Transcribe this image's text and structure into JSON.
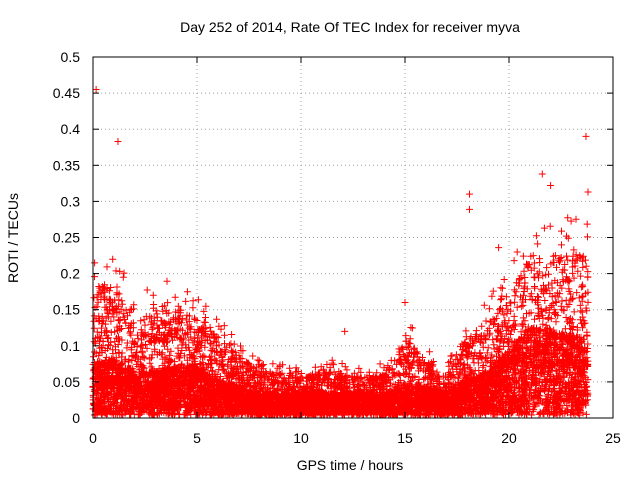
{
  "chart_data": {
    "type": "scatter",
    "title": "Day 252 of 2014, Rate Of TEC Index for receiver myva",
    "xlabel": "GPS time / hours",
    "ylabel": "ROTI / TECUs",
    "xlim": [
      0,
      25
    ],
    "ylim": [
      0,
      0.5
    ],
    "x_ticks": [
      "0",
      "5",
      "10",
      "15",
      "20",
      "25"
    ],
    "y_ticks": [
      "0",
      "0.05",
      "0.1",
      "0.15",
      "0.2",
      "0.25",
      "0.3",
      "0.35",
      "0.4",
      "0.45",
      "0.5"
    ],
    "grid": true,
    "marker": "plus",
    "series_color": "#ff0000",
    "notable_points": [
      {
        "x": 0.15,
        "y": 0.455
      },
      {
        "x": 1.2,
        "y": 0.383
      },
      {
        "x": 23.7,
        "y": 0.39
      },
      {
        "x": 18.1,
        "y": 0.31
      },
      {
        "x": 18.1,
        "y": 0.289
      },
      {
        "x": 21.6,
        "y": 0.338
      },
      {
        "x": 22.0,
        "y": 0.322
      },
      {
        "x": 23.8,
        "y": 0.313
      },
      {
        "x": 19.5,
        "y": 0.236
      },
      {
        "x": 15.0,
        "y": 0.16
      },
      {
        "x": 12.1,
        "y": 0.12
      }
    ],
    "envelope": {
      "hours": [
        0,
        1,
        2,
        3,
        4,
        5,
        6,
        7,
        8,
        9,
        10,
        11,
        12,
        13,
        14,
        15,
        16,
        17,
        18,
        19,
        20,
        21,
        22,
        23,
        23.8
      ],
      "upper": [
        0.22,
        0.24,
        0.16,
        0.19,
        0.19,
        0.17,
        0.14,
        0.11,
        0.08,
        0.08,
        0.07,
        0.08,
        0.08,
        0.07,
        0.08,
        0.14,
        0.1,
        0.07,
        0.15,
        0.17,
        0.2,
        0.28,
        0.27,
        0.28,
        0.28
      ],
      "typical": [
        0.07,
        0.08,
        0.06,
        0.06,
        0.07,
        0.07,
        0.05,
        0.04,
        0.03,
        0.03,
        0.03,
        0.03,
        0.03,
        0.03,
        0.03,
        0.04,
        0.04,
        0.03,
        0.05,
        0.06,
        0.09,
        0.12,
        0.12,
        0.11,
        0.11
      ]
    }
  }
}
